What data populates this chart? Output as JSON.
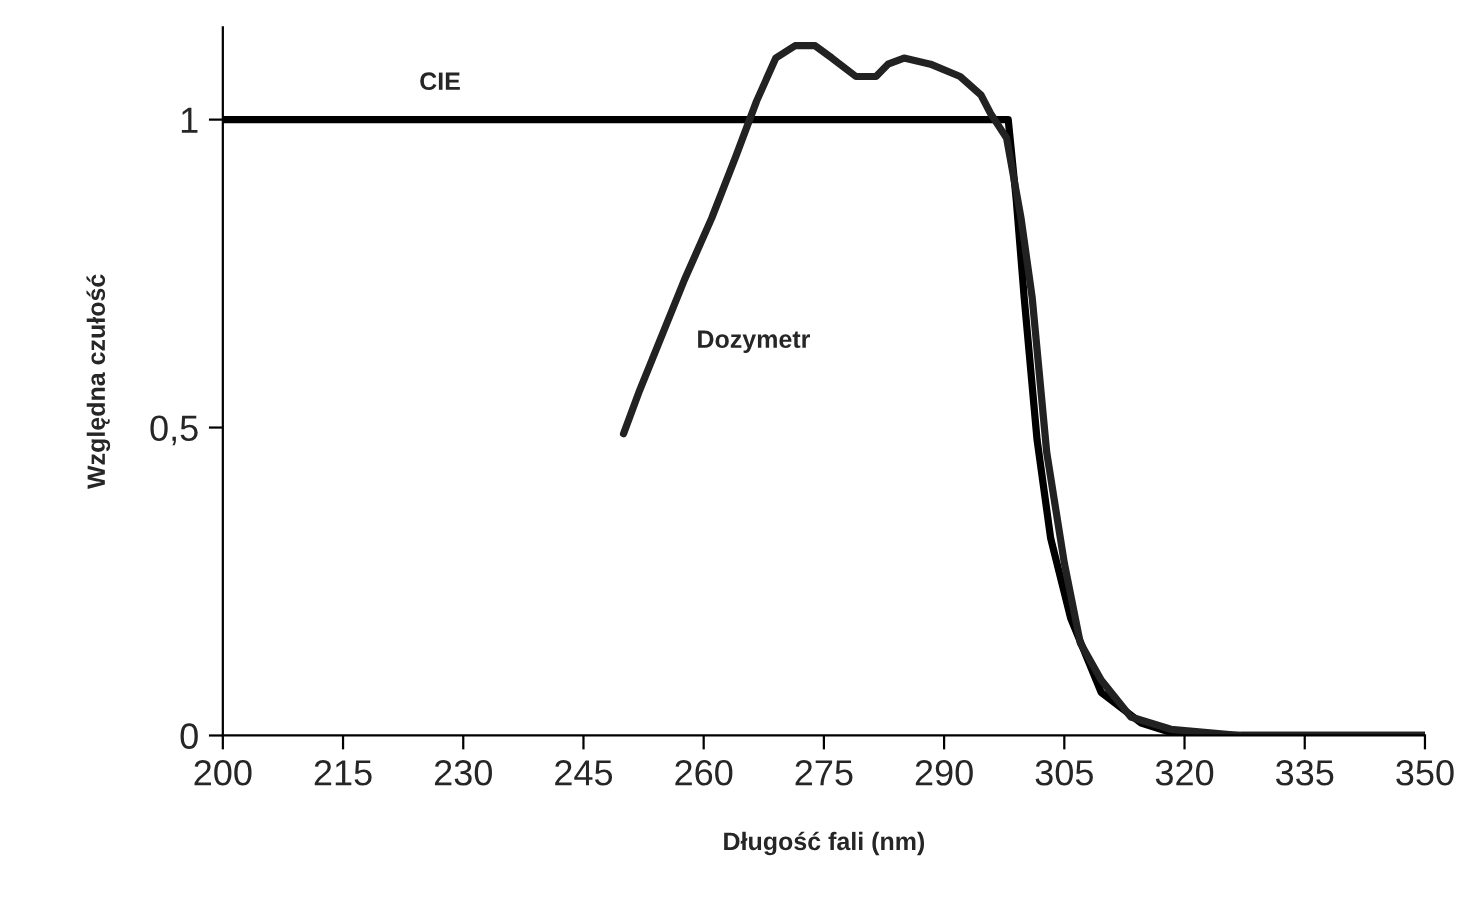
{
  "chart_data": {
    "type": "line",
    "xlabel": "Długość fali (nm)",
    "ylabel": "Względna czułość",
    "xlim": [
      200,
      350
    ],
    "xticks": [
      200,
      215,
      230,
      245,
      260,
      275,
      290,
      305,
      320,
      335,
      350
    ],
    "ylim": [
      0,
      1.15
    ],
    "yticks": [
      0,
      {
        "value": 0.5,
        "label": "0,5"
      },
      1
    ],
    "grid": false,
    "legend": false,
    "marker": "none",
    "line_style": "solid",
    "series": [
      {
        "name": "CIE",
        "color": "#000000",
        "x": [
          200,
          298,
          299,
          300,
          301.6,
          303.3,
          305.8,
          309.6,
          314.6,
          319.5,
          350
        ],
        "values": [
          1,
          1,
          0.87,
          0.71,
          0.48,
          0.32,
          0.19,
          0.07,
          0.02,
          0,
          0
        ]
      },
      {
        "name": "Dozymetr",
        "color": "#222222",
        "x": [
          250,
          252,
          257.6,
          261,
          264,
          266.6,
          269,
          271.4,
          273.9,
          276,
          279,
          281.5,
          283,
          285,
          288.3,
          292,
          294.6,
          295.8,
          297.8,
          299.6,
          301,
          302.8,
          305,
          307,
          309.6,
          313.3,
          318.3,
          327,
          350
        ],
        "values": [
          0.49,
          0.56,
          0.74,
          0.84,
          0.94,
          1.03,
          1.1,
          1.12,
          1.12,
          1.1,
          1.07,
          1.07,
          1.09,
          1.1,
          1.09,
          1.07,
          1.04,
          1.01,
          0.97,
          0.84,
          0.71,
          0.46,
          0.28,
          0.15,
          0.09,
          0.03,
          0.01,
          0,
          0
        ]
      }
    ]
  }
}
